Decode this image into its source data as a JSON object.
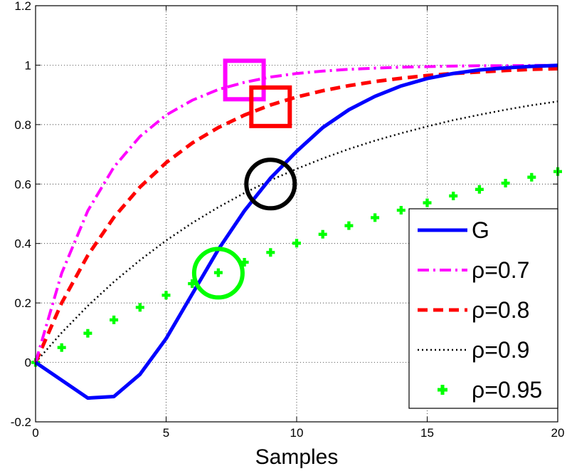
{
  "chart_data": {
    "type": "line",
    "title": "",
    "xlabel": "Samples",
    "ylabel": "",
    "xlim": [
      0,
      20
    ],
    "ylim": [
      -0.2,
      1.2
    ],
    "xticks": [
      0,
      5,
      10,
      15,
      20
    ],
    "yticks": [
      -0.2,
      0,
      0.2,
      0.4,
      0.6,
      0.8,
      1,
      1.2
    ],
    "xtick_labels": [
      "0",
      "5",
      "10",
      "15",
      "20"
    ],
    "ytick_labels": [
      "-0.2",
      "0",
      "0.2",
      "0.4",
      "0.6",
      "0.8",
      "1",
      "1.2"
    ],
    "grid": true,
    "legend_position": "bottom-right",
    "x": [
      0,
      1,
      2,
      3,
      4,
      5,
      6,
      7,
      8,
      9,
      10,
      11,
      12,
      13,
      14,
      15,
      16,
      17,
      18,
      19,
      20
    ],
    "series": [
      {
        "name": "G",
        "style": "solid",
        "color": "#0000ff",
        "values": [
          0,
          -0.06,
          -0.12,
          -0.115,
          -0.04,
          0.08,
          0.23,
          0.38,
          0.51,
          0.62,
          0.71,
          0.79,
          0.85,
          0.895,
          0.93,
          0.955,
          0.972,
          0.984,
          0.991,
          0.996,
          0.999
        ]
      },
      {
        "name": "ρ=0.7",
        "style": "dashdot",
        "color": "#ff00ff",
        "values": [
          0,
          0.3,
          0.51,
          0.657,
          0.76,
          0.832,
          0.882,
          0.918,
          0.942,
          0.96,
          0.972,
          0.98,
          0.986,
          0.99,
          0.993,
          0.995,
          0.997,
          0.998,
          0.998,
          0.999,
          0.999
        ]
      },
      {
        "name": "ρ=0.8",
        "style": "dashed",
        "color": "#ff0000",
        "values": [
          0,
          0.2,
          0.36,
          0.488,
          0.59,
          0.672,
          0.738,
          0.79,
          0.832,
          0.866,
          0.893,
          0.914,
          0.931,
          0.945,
          0.956,
          0.965,
          0.972,
          0.977,
          0.982,
          0.986,
          0.988
        ]
      },
      {
        "name": "ρ=0.9",
        "style": "dotted",
        "color": "#000000",
        "values": [
          0,
          0.1,
          0.19,
          0.271,
          0.344,
          0.41,
          0.469,
          0.522,
          0.57,
          0.613,
          0.651,
          0.686,
          0.718,
          0.746,
          0.771,
          0.794,
          0.815,
          0.833,
          0.85,
          0.865,
          0.878
        ]
      },
      {
        "name": "ρ=0.95",
        "style": "markers",
        "color": "#00ff00",
        "values": [
          0,
          0.05,
          0.098,
          0.143,
          0.185,
          0.226,
          0.265,
          0.302,
          0.337,
          0.37,
          0.401,
          0.431,
          0.46,
          0.487,
          0.512,
          0.537,
          0.56,
          0.582,
          0.603,
          0.623,
          0.642
        ]
      }
    ],
    "annotations": [
      {
        "name": "magenta-square",
        "shape": "square",
        "color": "#ff00ff",
        "x": 8.0,
        "y": 0.95
      },
      {
        "name": "red-square",
        "shape": "square",
        "color": "#ff0000",
        "x": 9.0,
        "y": 0.86
      },
      {
        "name": "black-circle",
        "shape": "circle",
        "color": "#000000",
        "x": 9.0,
        "y": 0.6
      },
      {
        "name": "green-circle",
        "shape": "circle",
        "color": "#00ff00",
        "x": 7.0,
        "y": 0.3
      }
    ]
  }
}
